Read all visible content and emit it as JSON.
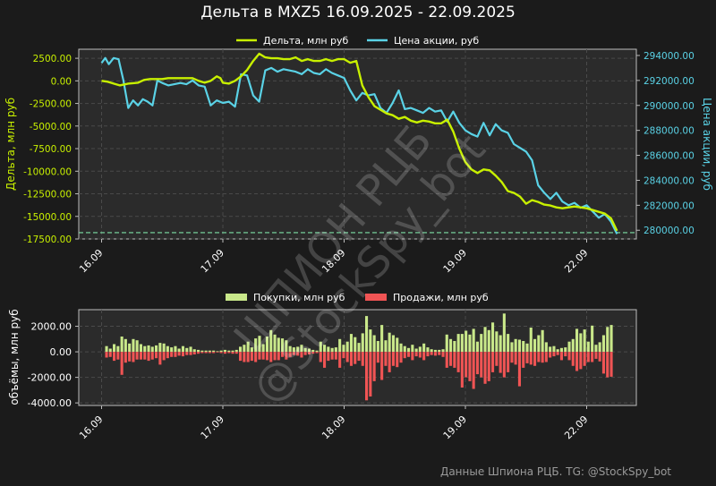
{
  "title": "Дельта в MXZ5 16.09.2025 - 22.09.2025",
  "watermark": {
    "line1": "ШПИОН РЦБ",
    "line2": "@StockSpy_bot"
  },
  "footer": "Данные Шпиона РЦБ. TG: @StockSpy_bot",
  "colors": {
    "background": "#1b1b1b",
    "plot_bg": "#2b2b2b",
    "delta": "#c8f000",
    "price": "#5ad2e6",
    "buys": "#c9e88a",
    "sells": "#f05454",
    "ref_line": "#7de0a6"
  },
  "chart_data": [
    {
      "type": "line",
      "title": "Дельта в MXZ5 16.09.2025 - 22.09.2025",
      "x_ticks": [
        "16.09",
        "17.09",
        "18.09",
        "19.09",
        "22.09"
      ],
      "ylabel": "Дельта, млн руб",
      "ylabel_right": "Цена акции, руб",
      "y_ticks": [
        "2500.00",
        "0.00",
        "-2500.00",
        "-5000.00",
        "-7500.00",
        "-10000.00",
        "-12500.00",
        "-15000.00",
        "-17500.00"
      ],
      "y_ticks_right": [
        "294000.00",
        "292000.00",
        "290000.00",
        "288000.00",
        "286000.00",
        "284000.00",
        "282000.00",
        "280000.00"
      ],
      "ylim": [
        -17500,
        3500
      ],
      "ylim_right": [
        279300,
        294500
      ],
      "grid": true,
      "legend_position": "top-center",
      "reference_line": -16800,
      "series": [
        {
          "name": "Дельта, млн руб",
          "axis": "left",
          "x": [
            0,
            0.05,
            0.1,
            0.15,
            0.22,
            0.3,
            0.35,
            0.4,
            0.45,
            0.5,
            0.55,
            0.6,
            0.65,
            0.7,
            0.75,
            0.8,
            0.85,
            0.9,
            0.95,
            0.98,
            1.0,
            1.05,
            1.1,
            1.15,
            1.2,
            1.25,
            1.3,
            1.35,
            1.4,
            1.45,
            1.5,
            1.55,
            1.6,
            1.65,
            1.7,
            1.75,
            1.8,
            1.85,
            1.9,
            1.95,
            2.0,
            2.05,
            2.1,
            2.15,
            2.2,
            2.25,
            2.3,
            2.35,
            2.4,
            2.45,
            2.5,
            2.55,
            2.6,
            2.65,
            2.7,
            2.75,
            2.8,
            2.85,
            2.9,
            2.95,
            3.0,
            3.05,
            3.1,
            3.15,
            3.2,
            3.25,
            3.3,
            3.35,
            3.4,
            3.45,
            3.5,
            3.55,
            3.6,
            3.65,
            3.7,
            3.75,
            3.8,
            3.85,
            3.9,
            3.95,
            4.0,
            4.05,
            4.1,
            4.15,
            4.2,
            4.25
          ],
          "values": [
            0,
            -100,
            -300,
            -500,
            -300,
            -200,
            100,
            200,
            200,
            200,
            300,
            300,
            300,
            300,
            300,
            0,
            -200,
            0,
            500,
            300,
            -200,
            -300,
            0,
            500,
            1200,
            2200,
            3000,
            2600,
            2500,
            2500,
            2400,
            2400,
            2600,
            2200,
            2400,
            2200,
            2200,
            2400,
            2200,
            2400,
            2400,
            2000,
            2200,
            -500,
            -1800,
            -2800,
            -3200,
            -3600,
            -3800,
            -4200,
            -4000,
            -4400,
            -4600,
            -4400,
            -4500,
            -4700,
            -4700,
            -4300,
            -5600,
            -7500,
            -9000,
            -9800,
            -10200,
            -9800,
            -9900,
            -10500,
            -11200,
            -12200,
            -12400,
            -12800,
            -13600,
            -13200,
            -13400,
            -13700,
            -13800,
            -14000,
            -14100,
            -14000,
            -13900,
            -14000,
            -14100,
            -14300,
            -14500,
            -14700,
            -15200,
            -16600
          ]
        },
        {
          "name": "Цена акции, руб",
          "axis": "right",
          "x": [
            0,
            0.03,
            0.06,
            0.1,
            0.14,
            0.18,
            0.22,
            0.26,
            0.3,
            0.34,
            0.38,
            0.42,
            0.46,
            0.5,
            0.55,
            0.6,
            0.65,
            0.7,
            0.75,
            0.8,
            0.85,
            0.9,
            0.95,
            1.0,
            1.05,
            1.1,
            1.15,
            1.2,
            1.25,
            1.3,
            1.35,
            1.4,
            1.45,
            1.5,
            1.55,
            1.6,
            1.65,
            1.7,
            1.75,
            1.8,
            1.85,
            1.9,
            1.95,
            2.0,
            2.05,
            2.1,
            2.15,
            2.2,
            2.25,
            2.3,
            2.35,
            2.4,
            2.45,
            2.5,
            2.55,
            2.6,
            2.65,
            2.7,
            2.75,
            2.8,
            2.85,
            2.9,
            2.95,
            3.0,
            3.05,
            3.1,
            3.15,
            3.2,
            3.25,
            3.3,
            3.35,
            3.4,
            3.45,
            3.5,
            3.55,
            3.6,
            3.65,
            3.7,
            3.75,
            3.8,
            3.85,
            3.9,
            3.95,
            4.0,
            4.05,
            4.1,
            4.15,
            4.2,
            4.25
          ],
          "values": [
            293400,
            293800,
            293300,
            293800,
            293700,
            292000,
            289800,
            290400,
            290000,
            290500,
            290300,
            290000,
            292000,
            291800,
            291600,
            291700,
            291800,
            291700,
            292000,
            291600,
            291500,
            290000,
            290400,
            290200,
            290300,
            289900,
            292500,
            292400,
            290800,
            290300,
            292800,
            293000,
            292700,
            292900,
            292800,
            292700,
            292500,
            292900,
            292600,
            292500,
            292900,
            292600,
            292400,
            292200,
            291200,
            290400,
            291000,
            290800,
            290900,
            289800,
            289400,
            290200,
            291200,
            289700,
            289800,
            289600,
            289400,
            289800,
            289500,
            289600,
            288700,
            289500,
            288600,
            288000,
            287700,
            287500,
            288600,
            287600,
            288500,
            288000,
            287800,
            286900,
            286600,
            286300,
            285600,
            283600,
            283000,
            282500,
            283000,
            282300,
            282000,
            282200,
            281800,
            282000,
            281500,
            281000,
            281300,
            280700,
            279700
          ]
        }
      ]
    },
    {
      "type": "bar",
      "ylabel": "объёмы, млн руб",
      "y_ticks": [
        "2000.00",
        "0.00",
        "-2000.00",
        "-4000.00"
      ],
      "x_ticks": [
        "16.09",
        "17.09",
        "18.09",
        "19.09",
        "22.09"
      ],
      "ylim": [
        -4200,
        3300
      ],
      "grid": true,
      "legend_position": "top-center",
      "series": [
        {
          "name": "Покупки, млн руб",
          "values": [
            450,
            250,
            600,
            450,
            1200,
            1000,
            650,
            1000,
            900,
            600,
            450,
            500,
            400,
            500,
            700,
            650,
            450,
            350,
            450,
            250,
            450,
            300,
            400,
            200,
            150,
            100,
            100,
            100,
            100,
            50,
            100,
            150,
            100,
            100,
            150,
            400,
            550,
            800,
            350,
            1050,
            1250,
            600,
            1200,
            1700,
            1350,
            1100,
            1050,
            900,
            450,
            350,
            400,
            550,
            300,
            250,
            150,
            100,
            800,
            550,
            400,
            300,
            350,
            1000,
            550,
            800,
            1400,
            1150,
            700,
            1450,
            2800,
            1750,
            1300,
            850,
            2100,
            900,
            1500,
            1300,
            1100,
            650,
            450,
            300,
            550,
            250,
            400,
            650,
            350,
            200,
            150,
            150,
            200,
            1350,
            1000,
            850,
            1400,
            1400,
            1650,
            1350,
            1800,
            800,
            1400,
            1950,
            1700,
            2300,
            1600,
            1300,
            3000,
            1400,
            750,
            1000,
            950,
            850,
            650,
            1900,
            1000,
            1300,
            1700,
            750,
            400,
            450,
            200,
            300,
            350,
            800,
            1000,
            1800,
            1450,
            1750,
            800,
            2050,
            550,
            750,
            1300,
            1950,
            2100
          ]
        },
        {
          "name": "Продажи, млн руб",
          "values": [
            -450,
            -400,
            -700,
            -600,
            -1800,
            -850,
            -750,
            -800,
            -600,
            -600,
            -600,
            -700,
            -600,
            -500,
            -1000,
            -650,
            -500,
            -400,
            -400,
            -300,
            -350,
            -250,
            -250,
            -200,
            -150,
            -100,
            -100,
            -100,
            -100,
            -50,
            -100,
            -150,
            -100,
            -150,
            -150,
            -700,
            -800,
            -800,
            -700,
            -800,
            -600,
            -600,
            -650,
            -800,
            -650,
            -650,
            -400,
            -600,
            -400,
            -250,
            -300,
            -450,
            -250,
            -200,
            -150,
            -100,
            -800,
            -1250,
            -700,
            -600,
            -600,
            -1250,
            -500,
            -800,
            -1100,
            -950,
            -700,
            -1100,
            -3800,
            -3500,
            -2300,
            -850,
            -2200,
            -1100,
            -1600,
            -1100,
            -1200,
            -850,
            -500,
            -400,
            -650,
            -350,
            -450,
            -650,
            -350,
            -250,
            -300,
            -250,
            -400,
            -1250,
            -1100,
            -1250,
            -1600,
            -2800,
            -2000,
            -2300,
            -2900,
            -1750,
            -2000,
            -2500,
            -2300,
            -1600,
            -1100,
            -1650,
            -2000,
            -1600,
            -850,
            -1000,
            -2700,
            -1250,
            -900,
            -1000,
            -1100,
            -800,
            -850,
            -800,
            -450,
            -350,
            -250,
            -650,
            -350,
            -650,
            -1100,
            -1500,
            -1350,
            -1100,
            -800,
            -800,
            -550,
            -750,
            -1700,
            -2000,
            -1950,
            -3150
          ]
        }
      ]
    }
  ]
}
